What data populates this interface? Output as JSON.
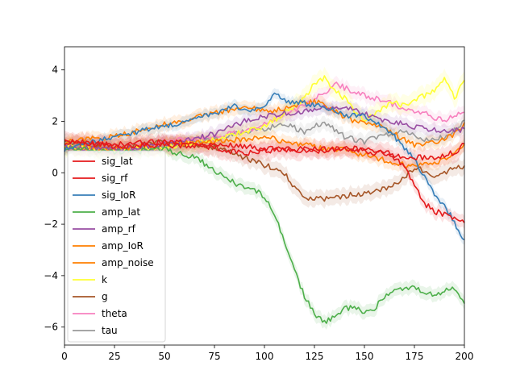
{
  "chart_data": {
    "type": "line",
    "title": "",
    "xlabel": "",
    "ylabel": "",
    "xlim": [
      0,
      200
    ],
    "ylim": [
      -6.7,
      4.9
    ],
    "xticks": [
      0,
      25,
      50,
      75,
      100,
      125,
      150,
      175,
      200
    ],
    "yticks": [
      -6,
      -4,
      -2,
      0,
      2,
      4
    ],
    "xtick_labels": [
      "0",
      "25",
      "50",
      "75",
      "100",
      "125",
      "150",
      "175",
      "200"
    ],
    "ytick_labels": [
      "−6",
      "−4",
      "−2",
      "0",
      "2",
      "4"
    ],
    "grid": false,
    "legend_position": "lower-left",
    "series": [
      {
        "name": "sig_lat",
        "color": "#e41a1c",
        "band": 0.25,
        "x": [
          0,
          25,
          50,
          75,
          90,
          100,
          110,
          120,
          130,
          140,
          150,
          160,
          170,
          175,
          180,
          185,
          190,
          195,
          200
        ],
        "y": [
          1.2,
          1.1,
          1.2,
          1.1,
          1.05,
          0.9,
          0.95,
          0.9,
          0.85,
          0.95,
          0.85,
          0.75,
          0.3,
          -0.5,
          -1.2,
          -1.5,
          -1.6,
          -1.8,
          -1.95
        ]
      },
      {
        "name": "sig_rf",
        "color": "#e41a1c",
        "band": 0.35,
        "x": [
          0,
          25,
          50,
          75,
          85,
          95,
          105,
          115,
          125,
          135,
          145,
          155,
          165,
          175,
          185,
          195,
          200
        ],
        "y": [
          1.3,
          1.0,
          1.1,
          1.0,
          0.8,
          0.75,
          0.9,
          0.85,
          0.95,
          0.9,
          0.95,
          0.85,
          0.7,
          0.6,
          0.6,
          0.8,
          1.1
        ]
      },
      {
        "name": "sig_IoR",
        "color": "#377eb8",
        "band": 0.2,
        "x": [
          0,
          25,
          50,
          75,
          85,
          95,
          100,
          105,
          110,
          120,
          130,
          140,
          150,
          160,
          170,
          175,
          180,
          185,
          190,
          195,
          200
        ],
        "y": [
          0.9,
          1.4,
          1.8,
          2.3,
          2.6,
          2.4,
          2.6,
          3.1,
          2.8,
          2.7,
          2.6,
          2.2,
          2.2,
          1.8,
          1.0,
          0.5,
          -0.2,
          -0.8,
          -1.3,
          -1.9,
          -2.7
        ]
      },
      {
        "name": "amp_lat",
        "color": "#4daf4a",
        "band": 0.25,
        "x": [
          0,
          25,
          50,
          65,
          75,
          85,
          95,
          100,
          105,
          110,
          115,
          120,
          125,
          130,
          135,
          140,
          145,
          150,
          155,
          160,
          165,
          170,
          175,
          180,
          185,
          190,
          195,
          200
        ],
        "y": [
          1.0,
          0.8,
          0.9,
          0.6,
          0.1,
          -0.4,
          -0.7,
          -0.9,
          -1.6,
          -2.7,
          -3.8,
          -4.8,
          -5.5,
          -5.8,
          -5.6,
          -5.3,
          -5.2,
          -5.4,
          -5.3,
          -4.8,
          -4.6,
          -4.5,
          -4.5,
          -4.6,
          -4.8,
          -4.6,
          -4.5,
          -5.1
        ]
      },
      {
        "name": "amp_rf",
        "color": "#984ea3",
        "band": 0.25,
        "x": [
          0,
          25,
          50,
          75,
          90,
          100,
          110,
          120,
          130,
          140,
          150,
          160,
          170,
          180,
          190,
          200
        ],
        "y": [
          1.0,
          0.9,
          1.1,
          1.5,
          2.0,
          2.2,
          2.3,
          2.4,
          2.5,
          2.6,
          2.3,
          2.0,
          1.9,
          1.7,
          1.6,
          1.7
        ]
      },
      {
        "name": "amp_IoR",
        "color": "#ff7f00",
        "band": 0.25,
        "x": [
          0,
          25,
          50,
          75,
          85,
          95,
          105,
          115,
          125,
          135,
          145,
          155,
          165,
          175,
          185,
          195,
          200
        ],
        "y": [
          1.2,
          1.4,
          1.9,
          2.3,
          2.5,
          2.5,
          2.4,
          2.6,
          2.8,
          2.4,
          2.0,
          1.9,
          1.5,
          1.1,
          1.2,
          1.5,
          1.9
        ]
      },
      {
        "name": "amp_noise",
        "color": "#ff7f00",
        "band": 0.25,
        "x": [
          0,
          25,
          50,
          75,
          90,
          100,
          110,
          120,
          130,
          140,
          150,
          160,
          170,
          180,
          190,
          200
        ],
        "y": [
          1.0,
          0.9,
          1.1,
          1.2,
          1.3,
          1.4,
          1.2,
          1.1,
          0.9,
          0.9,
          0.7,
          0.5,
          0.3,
          0.3,
          0.5,
          1.1
        ]
      },
      {
        "name": "k",
        "color": "#ffff33",
        "band": 0.35,
        "x": [
          0,
          25,
          50,
          75,
          90,
          100,
          110,
          120,
          125,
          130,
          135,
          140,
          145,
          150,
          155,
          160,
          165,
          170,
          175,
          180,
          185,
          190,
          195,
          200
        ],
        "y": [
          1.0,
          0.9,
          1.0,
          1.3,
          1.6,
          1.8,
          2.3,
          2.9,
          3.5,
          3.7,
          3.2,
          2.9,
          2.4,
          2.1,
          2.3,
          2.6,
          2.7,
          2.6,
          2.8,
          3.0,
          3.2,
          3.7,
          2.9,
          3.6
        ]
      },
      {
        "name": "g",
        "color": "#a65628",
        "band": 0.3,
        "x": [
          0,
          25,
          50,
          75,
          90,
          100,
          110,
          115,
          120,
          125,
          130,
          140,
          150,
          160,
          170,
          175,
          180,
          185,
          190,
          195,
          200
        ],
        "y": [
          1.2,
          0.9,
          1.2,
          1.0,
          0.6,
          0.3,
          0.0,
          -0.6,
          -1.0,
          -1.0,
          -1.0,
          -0.9,
          -0.8,
          -0.6,
          -0.2,
          0.2,
          0.1,
          -0.1,
          0.0,
          0.3,
          0.2
        ]
      },
      {
        "name": "theta",
        "color": "#f781bf",
        "band": 0.25,
        "x": [
          0,
          25,
          50,
          75,
          90,
          100,
          110,
          120,
          130,
          135,
          140,
          150,
          160,
          170,
          180,
          190,
          195,
          200
        ],
        "y": [
          1.0,
          0.9,
          1.2,
          1.4,
          1.6,
          1.9,
          2.3,
          2.6,
          3.1,
          3.5,
          3.3,
          3.0,
          2.8,
          2.5,
          2.3,
          2.0,
          2.2,
          2.4
        ]
      },
      {
        "name": "tau",
        "color": "#999999",
        "band": 0.25,
        "x": [
          0,
          25,
          50,
          75,
          90,
          100,
          110,
          120,
          130,
          140,
          150,
          160,
          170,
          180,
          190,
          200
        ],
        "y": [
          1.1,
          0.8,
          1.0,
          1.3,
          1.6,
          1.7,
          1.9,
          1.6,
          2.0,
          1.4,
          1.2,
          1.5,
          1.6,
          1.3,
          1.4,
          2.0
        ]
      }
    ]
  }
}
